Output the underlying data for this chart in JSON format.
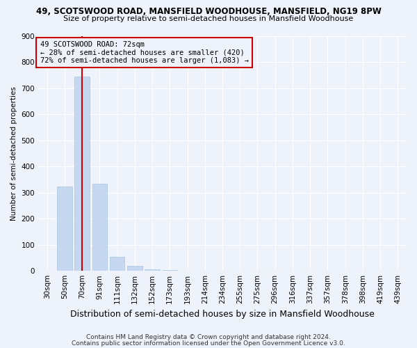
{
  "title1": "49, SCOTSWOOD ROAD, MANSFIELD WOODHOUSE, MANSFIELD, NG19 8PW",
  "title2": "Size of property relative to semi-detached houses in Mansfield Woodhouse",
  "xlabel": "Distribution of semi-detached houses by size in Mansfield Woodhouse",
  "ylabel": "Number of semi-detached properties",
  "footer1": "Contains HM Land Registry data © Crown copyright and database right 2024.",
  "footer2": "Contains public sector information licensed under the Open Government Licence v3.0.",
  "categories": [
    "30sqm",
    "50sqm",
    "70sqm",
    "91sqm",
    "111sqm",
    "132sqm",
    "152sqm",
    "173sqm",
    "193sqm",
    "214sqm",
    "234sqm",
    "255sqm",
    "275sqm",
    "296sqm",
    "316sqm",
    "337sqm",
    "357sqm",
    "378sqm",
    "398sqm",
    "419sqm",
    "439sqm"
  ],
  "values": [
    0,
    322,
    743,
    333,
    55,
    20,
    5,
    2,
    1,
    0,
    0,
    0,
    0,
    0,
    0,
    0,
    0,
    0,
    0,
    0,
    0
  ],
  "bar_color": "#c5d8f0",
  "bar_edgecolor": "#a8c4e0",
  "property_bin_index": 2,
  "annotation_line1": "49 SCOTSWOOD ROAD: 72sqm",
  "annotation_line2": "← 28% of semi-detached houses are smaller (420)",
  "annotation_line3": "72% of semi-detached houses are larger (1,083) →",
  "vline_color": "#cc0000",
  "box_edgecolor": "#cc0000",
  "background_color": "#eef2fb",
  "ylim": [
    0,
    900
  ],
  "yticks": [
    0,
    100,
    200,
    300,
    400,
    500,
    600,
    700,
    800,
    900
  ],
  "title1_fontsize": 8.5,
  "title2_fontsize": 8.0,
  "xlabel_fontsize": 9.0,
  "ylabel_fontsize": 7.5,
  "tick_fontsize": 7.5,
  "footer_fontsize": 6.5
}
